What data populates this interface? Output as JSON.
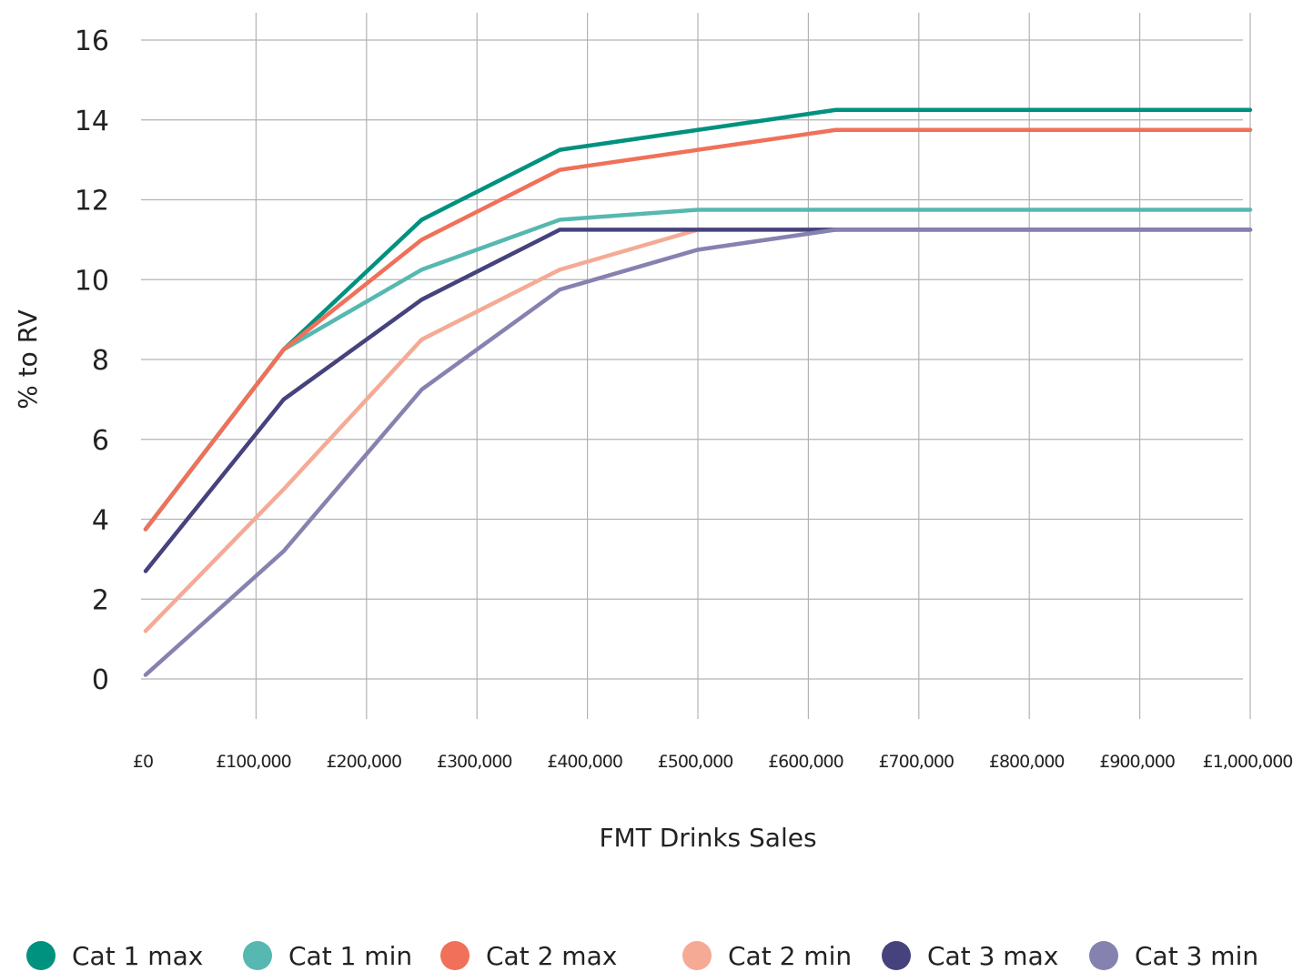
{
  "chart_data": {
    "type": "line",
    "title": "",
    "xlabel": "FMT Drinks Sales",
    "ylabel": "% to RV",
    "x": [
      0,
      125000,
      250000,
      375000,
      500000,
      625000,
      1000000
    ],
    "x_tick_labels": [
      "£0",
      "£100,000",
      "£200,000",
      "£300,000",
      "£400,000",
      "£500,000",
      "£600,000",
      "£700,000",
      "£800,000",
      "£900,000",
      "£1,000,000"
    ],
    "x_ticks": [
      0,
      100000,
      200000,
      300000,
      400000,
      500000,
      600000,
      700000,
      800000,
      900000,
      1000000
    ],
    "xlim": [
      0,
      1000000
    ],
    "y_ticks": [
      0,
      2,
      4,
      6,
      8,
      10,
      12,
      14,
      16
    ],
    "ylim": [
      0,
      16
    ],
    "grid": true,
    "legend_position": "bottom",
    "series": [
      {
        "name": "Cat 1 max",
        "color": "#00917f",
        "values": [
          3.75,
          8.25,
          11.5,
          13.25,
          13.75,
          14.25,
          14.25
        ]
      },
      {
        "name": "Cat 1 min",
        "color": "#56b8b0",
        "values": [
          3.75,
          8.25,
          10.25,
          11.5,
          11.75,
          11.75,
          11.75
        ]
      },
      {
        "name": "Cat 2 max",
        "color": "#f07059",
        "values": [
          3.75,
          8.25,
          11.0,
          12.75,
          13.25,
          13.75,
          13.75
        ]
      },
      {
        "name": "Cat 2 min",
        "color": "#f5aa95",
        "values": [
          1.2,
          4.75,
          8.5,
          10.25,
          11.25,
          11.25,
          11.25
        ]
      },
      {
        "name": "Cat 3 max",
        "color": "#45427e",
        "values": [
          2.7,
          7.0,
          9.5,
          11.25,
          11.25,
          11.25,
          11.25
        ]
      },
      {
        "name": "Cat 3 min",
        "color": "#8682b0",
        "values": [
          0.1,
          3.2,
          7.25,
          9.75,
          10.75,
          11.25,
          11.25
        ]
      }
    ]
  }
}
